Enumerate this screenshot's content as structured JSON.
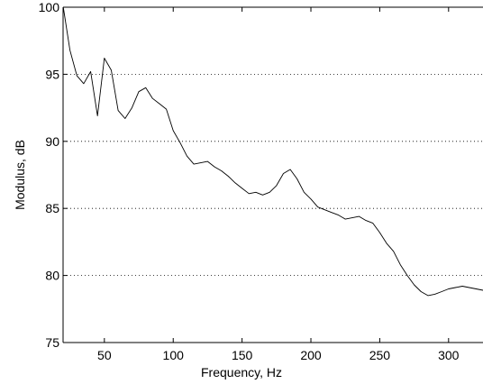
{
  "chart_data": {
    "type": "line",
    "title": "",
    "xlabel": "Frequency, Hz",
    "ylabel": "Modulus, dB",
    "xlim": [
      20,
      325
    ],
    "ylim": [
      75,
      100
    ],
    "x_ticks": [
      50,
      100,
      150,
      200,
      250,
      300
    ],
    "y_ticks": [
      75,
      80,
      85,
      90,
      95,
      100
    ],
    "x_tick_labels": [
      "50",
      "100",
      "150",
      "200",
      "250",
      "300"
    ],
    "y_tick_labels": [
      "75",
      "80",
      "85",
      "90",
      "95",
      "100"
    ],
    "grid": "horizontal dotted",
    "legend": "none",
    "line_color": "#000000",
    "series_count": 28,
    "x": [
      20,
      25,
      30,
      35,
      40,
      45,
      50,
      55,
      60,
      65,
      70,
      75,
      80,
      85,
      90,
      95,
      100,
      105,
      110,
      115,
      120,
      125,
      130,
      135,
      140,
      145,
      150,
      155,
      160,
      165,
      170,
      175,
      180,
      185,
      190,
      195,
      200,
      205,
      210,
      215,
      220,
      225,
      230,
      235,
      240,
      245,
      250,
      255,
      260,
      265,
      270,
      275,
      280,
      285,
      290,
      295,
      300,
      305,
      310,
      315,
      320,
      325
    ],
    "series": [
      {
        "values": [
          100.1,
          96.8,
          94.9,
          94.3,
          95.2,
          91.9,
          96.2,
          95.3,
          92.3,
          91.7,
          92.5,
          93.7,
          94.0,
          93.2,
          92.8,
          92.4,
          90.8,
          89.9,
          88.9,
          88.3,
          88.4,
          88.5,
          88.1,
          87.8,
          87.4,
          86.9,
          86.5,
          86.1,
          86.2,
          86.0,
          86.2,
          86.7,
          87.6,
          87.9,
          87.2,
          86.2,
          85.7,
          85.1,
          84.9,
          84.7,
          84.5,
          84.2,
          84.3,
          84.4,
          84.1,
          83.9,
          83.2,
          82.4,
          81.8,
          80.8,
          80.0,
          79.3,
          78.8,
          78.5,
          78.6,
          78.8,
          79.0,
          79.1,
          79.2,
          79.1,
          79.0,
          78.9
        ]
      }
    ]
  }
}
